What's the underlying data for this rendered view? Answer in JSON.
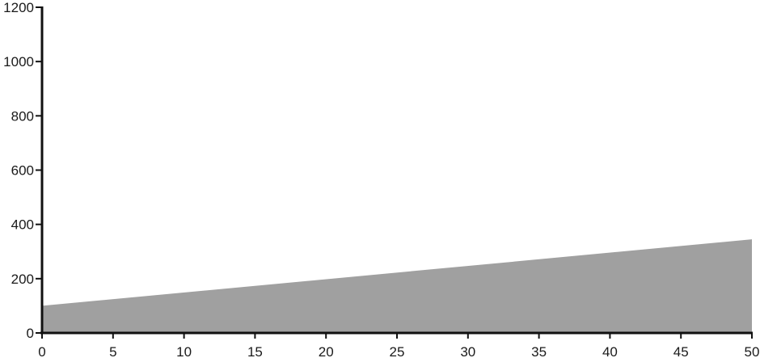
{
  "chart_data": {
    "type": "area",
    "title": "",
    "xlabel": "",
    "ylabel": "",
    "xlim": [
      0,
      50
    ],
    "ylim": [
      0,
      1200
    ],
    "x_ticks": [
      0,
      5,
      10,
      15,
      20,
      25,
      30,
      35,
      40,
      45,
      50
    ],
    "y_ticks": [
      0,
      200,
      400,
      600,
      800,
      1000,
      1200
    ],
    "x_tick_labels": [
      "0",
      "5",
      "10",
      "15",
      "20",
      "25",
      "30",
      "35",
      "40",
      "45",
      "50"
    ],
    "y_tick_labels": [
      "0",
      "200",
      "400",
      "600",
      "800",
      "1000",
      "1200"
    ],
    "grid": false,
    "legend": "none",
    "series": [
      {
        "x": [
          0,
          50
        ],
        "values": [
          100,
          345
        ],
        "color": "#a0a0a0"
      }
    ],
    "axis_color": "#111111"
  }
}
